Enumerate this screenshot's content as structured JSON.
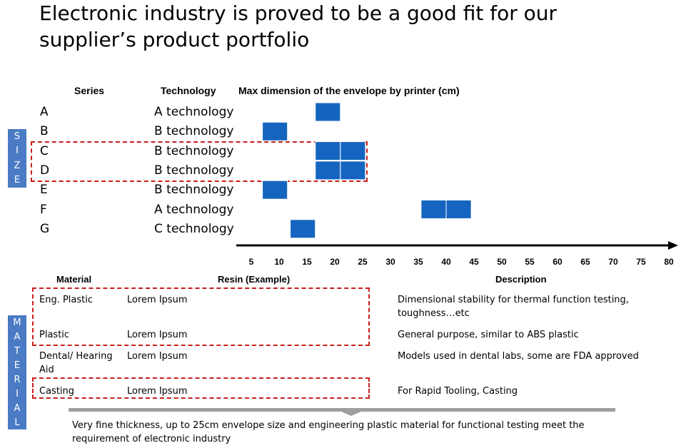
{
  "title": {
    "line1": "Electronic industry is proved to be a good fit for our",
    "line2": "supplier’s product portfolio"
  },
  "size_section": {
    "vertical_label": [
      "S",
      "I",
      "Z",
      "E"
    ],
    "headers": {
      "series": "Series",
      "technology": "Technology",
      "chart": "Max dimension of the envelope by printer (cm)"
    }
  },
  "chart_data": {
    "type": "bar",
    "title": "Max dimension of the envelope by printer (cm)",
    "xlabel": "",
    "ylabel": "",
    "xlim": [
      5,
      80
    ],
    "x_ticks": [
      5,
      10,
      15,
      20,
      25,
      30,
      35,
      40,
      45,
      50,
      55,
      60,
      65,
      70,
      75,
      80
    ],
    "categories": [
      "A",
      "B",
      "C",
      "D",
      "E",
      "F",
      "G"
    ],
    "technologies": [
      "A technology",
      "B technology",
      "B technology",
      "B technology",
      "B technology",
      "A technology",
      "C technology"
    ],
    "blocks": [
      [
        [
          16.5,
          21
        ]
      ],
      [
        [
          7,
          11.5
        ]
      ],
      [
        [
          16.5,
          21
        ],
        [
          21,
          25.5
        ]
      ],
      [
        [
          16.5,
          21
        ],
        [
          21,
          25.5
        ]
      ],
      [
        [
          7,
          11.5
        ]
      ],
      [
        [
          35.5,
          40
        ],
        [
          40,
          44.5
        ]
      ],
      [
        [
          12,
          16.5
        ]
      ]
    ],
    "highlight_rows": [
      "C",
      "D"
    ],
    "bar_color": "#1565c0"
  },
  "material_section": {
    "vertical_label": [
      "M",
      "A",
      "T",
      "E",
      "R",
      "I",
      "A",
      "L"
    ],
    "headers": {
      "material": "Material",
      "resin": "Resin (Example)",
      "description": "Description"
    },
    "rows": [
      {
        "material": "Eng. Plastic",
        "resin": "Lorem Ipsum",
        "description": "Dimensional stability for thermal function testing, toughness…etc"
      },
      {
        "material": "Plastic",
        "resin": "Lorem Ipsum",
        "description": "General purpose, similar to ABS plastic"
      },
      {
        "material": "Dental/ Hearing Aid",
        "resin": "Lorem Ipsum",
        "description": "Models used in dental labs, some are FDA approved"
      },
      {
        "material": "Casting",
        "resin": "Lorem Ipsum",
        "description": "For Rapid Tooling, Casting"
      }
    ]
  },
  "conclusion": "Very fine thickness, up to 25cm envelope size and engineering plastic material for functional testing meet the requirement of electronic industry",
  "colors": {
    "accent_blue": "#4a7bc4",
    "highlight_red": "#c81e1e",
    "divider_gray": "#9e9e9e"
  }
}
